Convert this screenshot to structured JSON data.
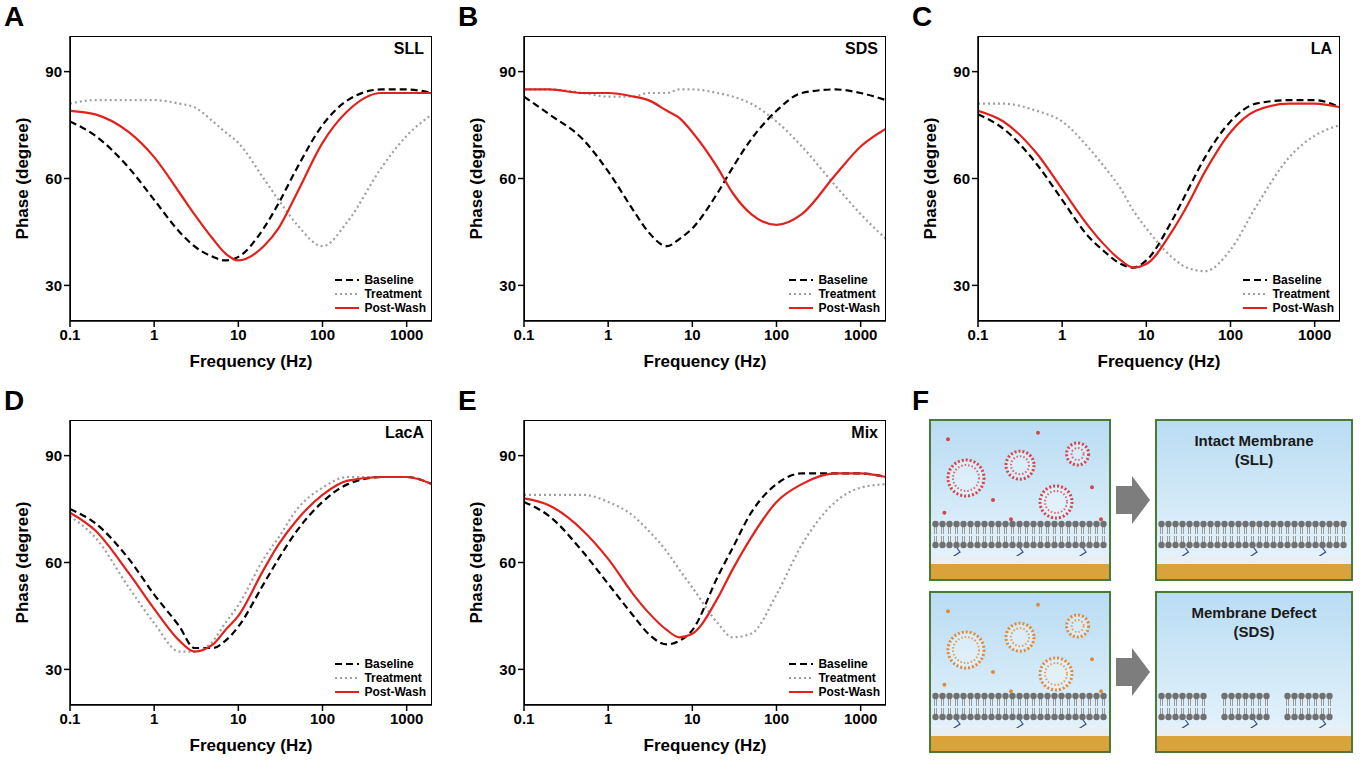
{
  "chart_data": [
    {
      "type": "line",
      "panel": "A",
      "title": "SLL",
      "x_label": "Frequency (Hz)",
      "y_label": "Phase (degree)",
      "log": "x",
      "xlim": [
        0.1,
        2000
      ],
      "xticks": [
        0.1,
        1,
        10,
        100,
        1000
      ],
      "ylim": [
        20,
        100
      ],
      "yticks": [
        30,
        60,
        90
      ],
      "grid": false,
      "legend": "lower right",
      "x": [
        0.1,
        0.2,
        0.5,
        1,
        2,
        3,
        5,
        7,
        10,
        20,
        30,
        50,
        100,
        200,
        500,
        1000,
        2000
      ],
      "series": [
        {
          "name": "Baseline",
          "color": "#000000",
          "line_style": "dashed",
          "values": [
            76,
            72,
            63,
            54,
            45,
            41,
            38,
            37,
            38,
            46,
            53,
            63,
            75,
            82,
            85,
            85,
            84
          ]
        },
        {
          "name": "Treatment",
          "color": "#9e9e9e",
          "line_style": "dotted",
          "values": [
            81,
            82,
            82,
            82,
            81,
            80,
            76,
            73,
            70,
            60,
            54,
            47,
            41,
            48,
            63,
            72,
            78
          ]
        },
        {
          "name": "Post-Wash",
          "color": "#e3211c",
          "line_style": "solid",
          "values": [
            79,
            78,
            73,
            66,
            56,
            50,
            43,
            39,
            37,
            41,
            46,
            56,
            70,
            79,
            84,
            84,
            84
          ]
        }
      ]
    },
    {
      "type": "line",
      "panel": "B",
      "title": "SDS",
      "x_label": "Frequency (Hz)",
      "y_label": "Phase (degree)",
      "log": "x",
      "xlim": [
        0.1,
        2000
      ],
      "xticks": [
        0.1,
        1,
        10,
        100,
        1000
      ],
      "ylim": [
        20,
        100
      ],
      "yticks": [
        30,
        60,
        90
      ],
      "grid": false,
      "legend": "lower right",
      "x": [
        0.1,
        0.2,
        0.5,
        1,
        2,
        3,
        5,
        7,
        10,
        20,
        30,
        50,
        100,
        200,
        500,
        1000,
        2000
      ],
      "series": [
        {
          "name": "Baseline",
          "color": "#000000",
          "line_style": "dashed",
          "values": [
            83,
            78,
            71,
            62,
            51,
            45,
            41,
            43,
            46,
            56,
            63,
            71,
            79,
            84,
            85,
            84,
            82
          ]
        },
        {
          "name": "Treatment",
          "color": "#9e9e9e",
          "line_style": "dotted",
          "values": [
            85,
            85,
            84,
            83,
            83,
            84,
            84,
            85,
            85,
            84,
            83,
            81,
            76,
            69,
            58,
            50,
            43
          ]
        },
        {
          "name": "Post-Wash",
          "color": "#e3211c",
          "line_style": "solid",
          "values": [
            85,
            85,
            84,
            84,
            83,
            82,
            79,
            77,
            73,
            63,
            56,
            50,
            47,
            50,
            61,
            69,
            74
          ]
        }
      ]
    },
    {
      "type": "line",
      "panel": "C",
      "title": "LA",
      "x_label": "Frequency (Hz)",
      "y_label": "Phase (degree)",
      "log": "x",
      "xlim": [
        0.1,
        2000
      ],
      "xticks": [
        0.1,
        1,
        10,
        100,
        1000
      ],
      "ylim": [
        20,
        100
      ],
      "yticks": [
        30,
        60,
        90
      ],
      "grid": false,
      "legend": "lower right",
      "x": [
        0.1,
        0.2,
        0.5,
        1,
        2,
        3,
        5,
        7,
        10,
        20,
        30,
        50,
        100,
        200,
        500,
        1000,
        2000
      ],
      "series": [
        {
          "name": "Baseline",
          "color": "#000000",
          "line_style": "dashed",
          "values": [
            78,
            74,
            64,
            54,
            44,
            40,
            36,
            35,
            37,
            48,
            56,
            66,
            76,
            81,
            82,
            82,
            80
          ]
        },
        {
          "name": "Treatment",
          "color": "#9e9e9e",
          "line_style": "dotted",
          "values": [
            81,
            81,
            79,
            76,
            69,
            64,
            57,
            51,
            46,
            38,
            35,
            34,
            40,
            52,
            66,
            72,
            75
          ]
        },
        {
          "name": "Post-Wash",
          "color": "#e3211c",
          "line_style": "solid",
          "values": [
            79,
            76,
            67,
            57,
            47,
            42,
            37,
            35,
            36,
            45,
            52,
            62,
            73,
            79,
            81,
            81,
            80
          ]
        }
      ]
    },
    {
      "type": "line",
      "panel": "D",
      "title": "LacA",
      "x_label": "Frequency (Hz)",
      "y_label": "Phase (degree)",
      "log": "x",
      "xlim": [
        0.1,
        2000
      ],
      "xticks": [
        0.1,
        1,
        10,
        100,
        1000
      ],
      "ylim": [
        20,
        100
      ],
      "yticks": [
        30,
        60,
        90
      ],
      "grid": false,
      "legend": "lower right",
      "x": [
        0.1,
        0.2,
        0.5,
        1,
        2,
        3,
        5,
        7,
        10,
        20,
        30,
        50,
        100,
        200,
        500,
        1000,
        2000
      ],
      "series": [
        {
          "name": "Baseline",
          "color": "#000000",
          "line_style": "dashed",
          "values": [
            75,
            71,
            61,
            51,
            42,
            36,
            36,
            38,
            42,
            54,
            61,
            69,
            77,
            82,
            84,
            84,
            82
          ]
        },
        {
          "name": "Treatment",
          "color": "#9e9e9e",
          "line_style": "dotted",
          "values": [
            73,
            67,
            53,
            43,
            35,
            35,
            38,
            43,
            48,
            61,
            67,
            75,
            81,
            84,
            84,
            84,
            82
          ]
        },
        {
          "name": "Post-Wash",
          "color": "#e3211c",
          "line_style": "solid",
          "values": [
            74,
            69,
            57,
            47,
            38,
            35,
            37,
            41,
            45,
            58,
            65,
            72,
            79,
            83,
            84,
            84,
            82
          ]
        }
      ]
    },
    {
      "type": "line",
      "panel": "E",
      "title": "Mix",
      "x_label": "Frequency (Hz)",
      "y_label": "Phase (degree)",
      "log": "x",
      "xlim": [
        0.1,
        2000
      ],
      "xticks": [
        0.1,
        1,
        10,
        100,
        1000
      ],
      "ylim": [
        20,
        100
      ],
      "yticks": [
        30,
        60,
        90
      ],
      "grid": false,
      "legend": "lower right",
      "x": [
        0.1,
        0.2,
        0.5,
        1,
        2,
        3,
        5,
        7,
        10,
        20,
        30,
        50,
        100,
        200,
        500,
        1000,
        2000
      ],
      "series": [
        {
          "name": "Baseline",
          "color": "#000000",
          "line_style": "dashed",
          "values": [
            77,
            73,
            63,
            54,
            45,
            40,
            37,
            38,
            41,
            56,
            64,
            74,
            82,
            85,
            85,
            85,
            84
          ]
        },
        {
          "name": "Treatment",
          "color": "#9e9e9e",
          "line_style": "dotted",
          "values": [
            79,
            79,
            79,
            77,
            73,
            69,
            63,
            58,
            53,
            43,
            39,
            40,
            51,
            65,
            77,
            81,
            82
          ]
        },
        {
          "name": "Post-Wash",
          "color": "#e3211c",
          "line_style": "solid",
          "values": [
            78,
            76,
            69,
            61,
            51,
            46,
            41,
            39,
            40,
            50,
            58,
            67,
            77,
            82,
            85,
            85,
            84
          ]
        }
      ]
    }
  ],
  "diagram": {
    "panel": "F",
    "rows": [
      {
        "label": "Intact Membrane (SLL)"
      },
      {
        "label": "Membrane Defect (SDS)"
      }
    ]
  }
}
